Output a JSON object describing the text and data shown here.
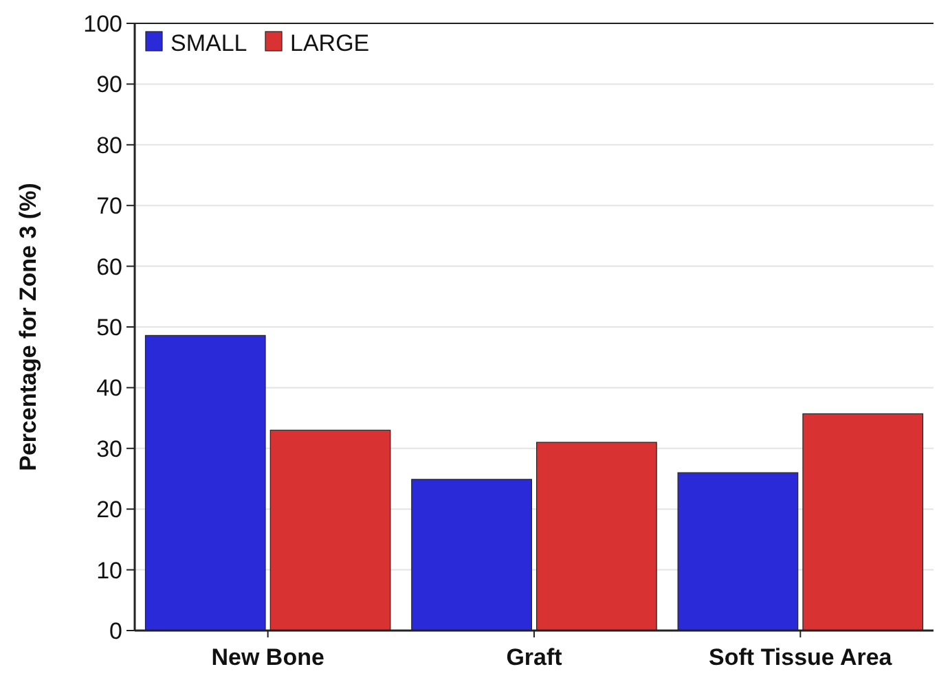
{
  "chart_data": {
    "type": "bar",
    "ylabel": "Percentage for Zone 3 (%)",
    "categories": [
      "New Bone",
      "Graft",
      "Soft Tissue Area"
    ],
    "series": [
      {
        "name": "SMALL",
        "color": "#2a2ad8",
        "values": [
          48.6,
          24.9,
          26.0
        ]
      },
      {
        "name": "LARGE",
        "color": "#d83232",
        "values": [
          33.0,
          31.0,
          35.7
        ]
      }
    ],
    "ylim": [
      0,
      100
    ],
    "yticks": [
      0,
      10,
      20,
      30,
      40,
      50,
      60,
      70,
      80,
      90,
      100
    ],
    "grid": "y",
    "legend": "top left"
  }
}
